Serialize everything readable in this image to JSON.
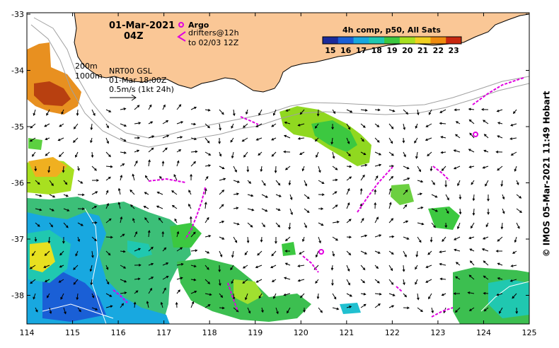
{
  "title": {
    "date": "01-Mar-2021",
    "time": "04Z"
  },
  "legend_argo": {
    "label": "Argo",
    "drifters_line1": "drifters@12h",
    "drifters_line2": "to 02/03 12Z",
    "argo_color": "#e000e0"
  },
  "info": {
    "isobath_200": "200m",
    "isobath_1000": "1000m",
    "product": "NRT00 GSL",
    "valid_time": "01-Mar 18:00Z",
    "scale_text": "0.5m/s (1kt 24h)"
  },
  "colorbar": {
    "title": "4h comp, p50, All Sats",
    "ticks": [
      "15",
      "16",
      "17",
      "18",
      "19",
      "20",
      "21",
      "22",
      "23"
    ],
    "colors": [
      "#1a2a9a",
      "#1a5fd6",
      "#18a8e0",
      "#20c8b0",
      "#3cc840",
      "#a8e020",
      "#f0d020",
      "#f08c10",
      "#c82810"
    ]
  },
  "axes": {
    "x_ticks": [
      "114",
      "115",
      "116",
      "117",
      "118",
      "119",
      "120",
      "121",
      "122",
      "123",
      "124",
      "125"
    ],
    "y_ticks": [
      "-33",
      "-34",
      "-35",
      "-36",
      "-37",
      "-38"
    ]
  },
  "credit": "© IMOS 05-Mar-2021 11:49 Hobart",
  "land_color": "#fac796"
}
